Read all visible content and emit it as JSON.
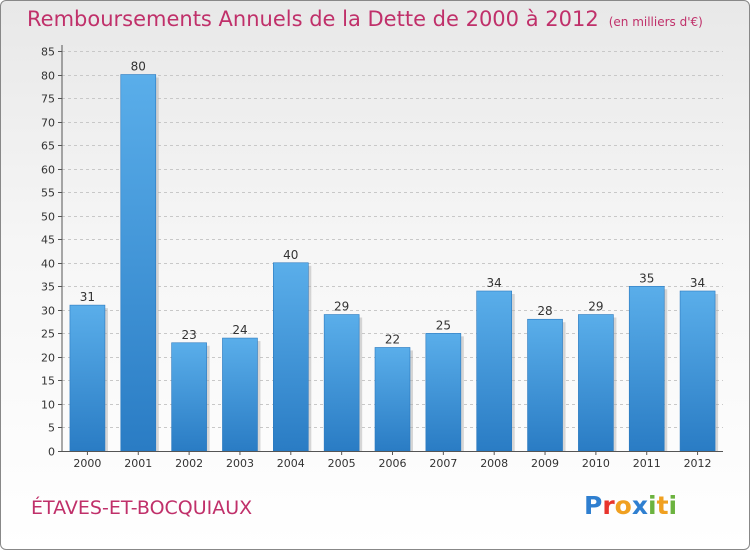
{
  "title": "Remboursements Annuels de la Dette de 2000 à 2012",
  "unit": "(en milliers d'€)",
  "commune": "ÉTAVES-ET-BOCQUIAUX",
  "logo": {
    "text": "Proxiti",
    "letters": [
      {
        "ch": "P",
        "color": "#2f7fd0"
      },
      {
        "ch": "r",
        "color": "#e8342c"
      },
      {
        "ch": "o",
        "color": "#f0a020"
      },
      {
        "ch": "x",
        "color": "#2f7fd0"
      },
      {
        "ch": "i",
        "color": "#6cb33f"
      },
      {
        "ch": "t",
        "color": "#f0a020"
      },
      {
        "ch": "i",
        "color": "#6cb33f"
      }
    ]
  },
  "colors": {
    "title": "#c0306a",
    "bar": "#4aa3e6",
    "bar_dark": "#2b7fc6"
  },
  "chart_data": {
    "type": "bar",
    "categories": [
      "2000",
      "2001",
      "2002",
      "2003",
      "2004",
      "2005",
      "2006",
      "2007",
      "2008",
      "2009",
      "2010",
      "2011",
      "2012"
    ],
    "values": [
      31,
      80,
      23,
      24,
      40,
      29,
      22,
      25,
      34,
      28,
      29,
      35,
      34
    ],
    "title": "Remboursements Annuels de la Dette de 2000 à 2012",
    "ylim": [
      0,
      85
    ],
    "yticks": [
      0,
      5,
      10,
      15,
      20,
      25,
      30,
      35,
      40,
      45,
      50,
      55,
      60,
      65,
      70,
      75,
      80,
      85
    ],
    "grid": true
  }
}
